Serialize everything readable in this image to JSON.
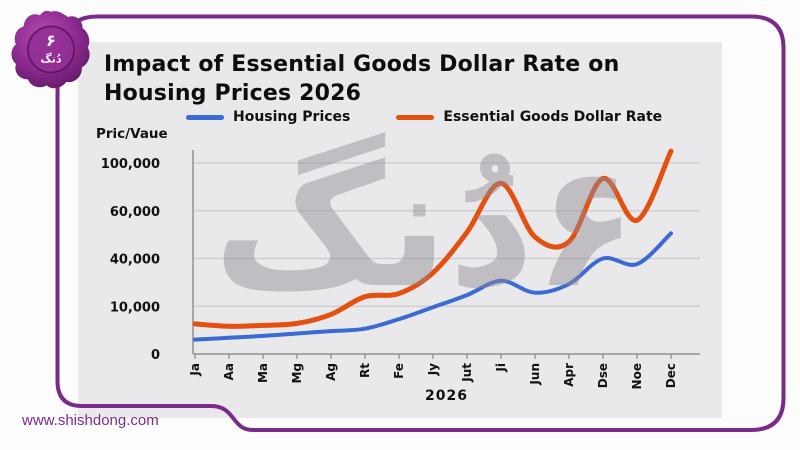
{
  "page": {
    "url": "www.shishdong.com",
    "frame_color": "#7b2a8c",
    "seal": {
      "top_text": "۶",
      "bottom_text": "دُنگ"
    }
  },
  "chart_data": {
    "type": "line",
    "title": "Impact of Essential Goods Dollar Rate on Housing Prices 2026",
    "y_axis_label": "Pric/Vaue",
    "x_axis_label": "2026",
    "watermark": "۶دُنگ",
    "grid": true,
    "legend_position": "top",
    "categories": [
      "Ja",
      "Aa",
      "Ma",
      "Mg",
      "Ag",
      "Rt",
      "Fe",
      "Jy",
      "Jut",
      "Ji",
      "Jun",
      "Apr",
      "Dse",
      "Noe",
      "Dec"
    ],
    "y_ticks": {
      "labels": [
        "100,000",
        "60,000",
        "40,000",
        "10,000",
        "0"
      ],
      "values": [
        100000,
        60000,
        40000,
        10000,
        0
      ]
    },
    "ylim": [
      0,
      112000
    ],
    "series": [
      {
        "name": "Housing Prices",
        "color": "#3a6ad2",
        "values": [
          3000,
          3400,
          3800,
          4300,
          4800,
          5300,
          7300,
          9800,
          17000,
          26000,
          18500,
          24000,
          40000,
          36500,
          50500
        ]
      },
      {
        "name": "Essential Goods Dollar Rate",
        "color": "#e4500f",
        "values": [
          6300,
          5800,
          6000,
          6400,
          8300,
          16000,
          18000,
          31000,
          51000,
          83000,
          49000,
          47000,
          87000,
          56000,
          110000
        ]
      }
    ],
    "colors": {
      "panel_bg": "#e9e8ea",
      "gridline": "#cbc9ce",
      "axis": "#8f8f8f",
      "text": "#111111"
    }
  }
}
